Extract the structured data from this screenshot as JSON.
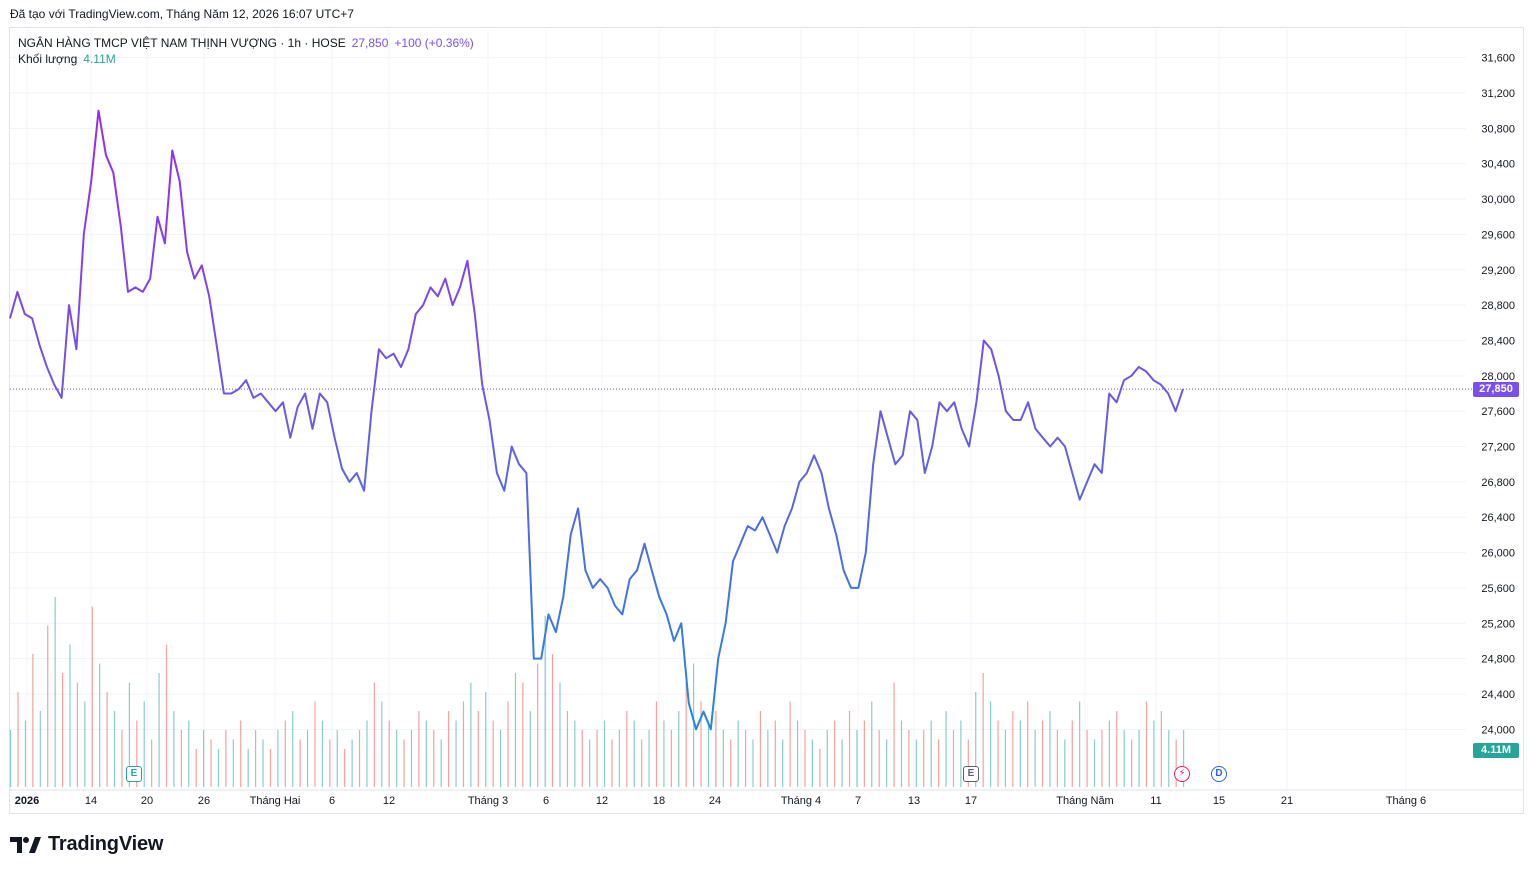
{
  "caption": "Đã tạo với TradingView.com, Tháng Năm 12, 2026 16:07 UTC+7",
  "legend": {
    "symbol": "NGÂN HÀNG TMCP VIỆT NAM THỊNH VƯỢNG · 1h · HOSE",
    "last": "27,850",
    "change": "+100 (+0.36%)",
    "volume_label": "Khối lượng",
    "volume_value": "4.11M"
  },
  "price_tag": "27,850",
  "volume_tag": "4.11M",
  "markers": {
    "earnings": "E",
    "dividend": "D",
    "flash": "⚡"
  },
  "brand": "TradingView",
  "colors": {
    "line_start": "#9c27f0",
    "line_mid": "#6a5ae8",
    "line_low": "#1e88e5",
    "vol_up": "#26a69a",
    "vol_down": "#ef5350",
    "tag": "#7a4ff0"
  },
  "chart_data": {
    "type": "line",
    "ylim": [
      23800,
      31800
    ],
    "y_ticks": [
      "31,600",
      "31,200",
      "30,800",
      "30,400",
      "30,000",
      "29,600",
      "29,200",
      "28,800",
      "28,400",
      "28,000",
      "27,600",
      "27,200",
      "26,800",
      "26,400",
      "26,000",
      "25,600",
      "25,200",
      "24,800",
      "24,400",
      "24,000"
    ],
    "x_ticks": [
      "2026",
      "14",
      "20",
      "26",
      "Tháng Hai",
      "6",
      "12",
      "Tháng 3",
      "6",
      "12",
      "18",
      "24",
      "Tháng 4",
      "7",
      "13",
      "17",
      "Tháng Năm",
      "11",
      "15",
      "21",
      "Tháng 6"
    ],
    "series": [
      {
        "values": [
          28650,
          28950,
          28700,
          28650,
          28350,
          28100,
          27900,
          27750,
          28800,
          28300,
          29600,
          30200,
          31000,
          30500,
          30300,
          29700,
          28950,
          29000,
          28950,
          29100,
          29800,
          29500,
          30550,
          30200,
          29400,
          29100,
          29250,
          28900,
          28350,
          27800,
          27800,
          27850,
          27950,
          27750,
          27800,
          27700,
          27600,
          27700,
          27300,
          27650,
          27800,
          27400,
          27800,
          27700,
          27300,
          26950,
          26800,
          26900,
          26700,
          27600,
          28300,
          28200,
          28250,
          28100,
          28300,
          28700,
          28800,
          29000,
          28900,
          29100,
          28800,
          29000,
          29300,
          28700,
          27900,
          27500,
          26900,
          26700,
          27200,
          27000,
          26900,
          24800,
          24800,
          25300,
          25100,
          25500,
          26200,
          26500,
          25800,
          25600,
          25700,
          25600,
          25400,
          25300,
          25700,
          25800,
          26100,
          25800,
          25500,
          25300,
          25000,
          25200,
          24300,
          24000,
          24200,
          24000,
          24800,
          25200,
          25900,
          26100,
          26300,
          26250,
          26400,
          26200,
          26000,
          26300,
          26500,
          26800,
          26900,
          27100,
          26900,
          26500,
          26200,
          25800,
          25600,
          25600,
          26000,
          27000,
          27600,
          27300,
          27000,
          27100,
          27600,
          27500,
          26900,
          27200,
          27700,
          27600,
          27700,
          27400,
          27200,
          27700,
          28400,
          28300,
          28000,
          27600,
          27500,
          27500,
          27700,
          27400,
          27300,
          27200,
          27300,
          27200,
          26900,
          26600,
          26800,
          27000,
          26900,
          27800,
          27700,
          27950,
          28000,
          28100,
          28050,
          27950,
          27900,
          27800,
          27600,
          27850
        ]
      }
    ],
    "volume": [
      {
        "v": 0.3,
        "up": true
      },
      {
        "v": 0.5,
        "up": false
      },
      {
        "v": 0.35,
        "up": true
      },
      {
        "v": 0.7,
        "up": false
      },
      {
        "v": 0.4,
        "up": true
      },
      {
        "v": 0.85,
        "up": false
      },
      {
        "v": 1.0,
        "up": true
      },
      {
        "v": 0.6,
        "up": false
      },
      {
        "v": 0.75,
        "up": true
      },
      {
        "v": 0.55,
        "up": false
      },
      {
        "v": 0.45,
        "up": true
      },
      {
        "v": 0.95,
        "up": false
      },
      {
        "v": 0.65,
        "up": true
      },
      {
        "v": 0.5,
        "up": false
      },
      {
        "v": 0.4,
        "up": true
      },
      {
        "v": 0.3,
        "up": false
      },
      {
        "v": 0.55,
        "up": true
      },
      {
        "v": 0.35,
        "up": false
      },
      {
        "v": 0.45,
        "up": true
      },
      {
        "v": 0.25,
        "up": false
      },
      {
        "v": 0.6,
        "up": true
      },
      {
        "v": 0.75,
        "up": false
      },
      {
        "v": 0.4,
        "up": true
      },
      {
        "v": 0.3,
        "up": false
      },
      {
        "v": 0.35,
        "up": true
      },
      {
        "v": 0.2,
        "up": false
      },
      {
        "v": 0.3,
        "up": true
      },
      {
        "v": 0.25,
        "up": false
      },
      {
        "v": 0.2,
        "up": true
      },
      {
        "v": 0.3,
        "up": false
      },
      {
        "v": 0.25,
        "up": true
      },
      {
        "v": 0.35,
        "up": false
      },
      {
        "v": 0.2,
        "up": true
      },
      {
        "v": 0.3,
        "up": false
      },
      {
        "v": 0.25,
        "up": true
      },
      {
        "v": 0.2,
        "up": false
      },
      {
        "v": 0.3,
        "up": true
      },
      {
        "v": 0.35,
        "up": false
      },
      {
        "v": 0.4,
        "up": true
      },
      {
        "v": 0.25,
        "up": false
      },
      {
        "v": 0.3,
        "up": true
      },
      {
        "v": 0.45,
        "up": false
      },
      {
        "v": 0.35,
        "up": true
      },
      {
        "v": 0.25,
        "up": false
      },
      {
        "v": 0.3,
        "up": true
      },
      {
        "v": 0.2,
        "up": false
      },
      {
        "v": 0.25,
        "up": true
      },
      {
        "v": 0.3,
        "up": false
      },
      {
        "v": 0.35,
        "up": true
      },
      {
        "v": 0.55,
        "up": false
      },
      {
        "v": 0.45,
        "up": true
      },
      {
        "v": 0.35,
        "up": false
      },
      {
        "v": 0.3,
        "up": true
      },
      {
        "v": 0.25,
        "up": false
      },
      {
        "v": 0.3,
        "up": true
      },
      {
        "v": 0.4,
        "up": false
      },
      {
        "v": 0.35,
        "up": true
      },
      {
        "v": 0.3,
        "up": false
      },
      {
        "v": 0.25,
        "up": true
      },
      {
        "v": 0.4,
        "up": false
      },
      {
        "v": 0.35,
        "up": true
      },
      {
        "v": 0.45,
        "up": false
      },
      {
        "v": 0.55,
        "up": true
      },
      {
        "v": 0.4,
        "up": false
      },
      {
        "v": 0.5,
        "up": true
      },
      {
        "v": 0.35,
        "up": false
      },
      {
        "v": 0.3,
        "up": true
      },
      {
        "v": 0.45,
        "up": false
      },
      {
        "v": 0.6,
        "up": true
      },
      {
        "v": 0.55,
        "up": false
      },
      {
        "v": 0.4,
        "up": true
      },
      {
        "v": 0.65,
        "up": false
      },
      {
        "v": 0.9,
        "up": true
      },
      {
        "v": 0.7,
        "up": false
      },
      {
        "v": 0.55,
        "up": true
      },
      {
        "v": 0.4,
        "up": false
      },
      {
        "v": 0.35,
        "up": true
      },
      {
        "v": 0.3,
        "up": false
      },
      {
        "v": 0.25,
        "up": true
      },
      {
        "v": 0.3,
        "up": false
      },
      {
        "v": 0.35,
        "up": true
      },
      {
        "v": 0.25,
        "up": false
      },
      {
        "v": 0.3,
        "up": true
      },
      {
        "v": 0.4,
        "up": false
      },
      {
        "v": 0.35,
        "up": true
      },
      {
        "v": 0.25,
        "up": false
      },
      {
        "v": 0.3,
        "up": true
      },
      {
        "v": 0.45,
        "up": false
      },
      {
        "v": 0.35,
        "up": true
      },
      {
        "v": 0.3,
        "up": false
      },
      {
        "v": 0.4,
        "up": true
      },
      {
        "v": 0.55,
        "up": false
      },
      {
        "v": 0.65,
        "up": true
      },
      {
        "v": 0.45,
        "up": false
      },
      {
        "v": 0.35,
        "up": true
      },
      {
        "v": 0.4,
        "up": false
      },
      {
        "v": 0.3,
        "up": true
      },
      {
        "v": 0.25,
        "up": false
      },
      {
        "v": 0.35,
        "up": true
      },
      {
        "v": 0.3,
        "up": false
      },
      {
        "v": 0.25,
        "up": true
      },
      {
        "v": 0.4,
        "up": false
      },
      {
        "v": 0.3,
        "up": true
      },
      {
        "v": 0.35,
        "up": false
      },
      {
        "v": 0.25,
        "up": true
      },
      {
        "v": 0.45,
        "up": false
      },
      {
        "v": 0.35,
        "up": true
      },
      {
        "v": 0.3,
        "up": false
      },
      {
        "v": 0.25,
        "up": true
      },
      {
        "v": 0.2,
        "up": false
      },
      {
        "v": 0.3,
        "up": true
      },
      {
        "v": 0.35,
        "up": false
      },
      {
        "v": 0.25,
        "up": true
      },
      {
        "v": 0.4,
        "up": false
      },
      {
        "v": 0.3,
        "up": true
      },
      {
        "v": 0.35,
        "up": false
      },
      {
        "v": 0.45,
        "up": true
      },
      {
        "v": 0.3,
        "up": false
      },
      {
        "v": 0.25,
        "up": true
      },
      {
        "v": 0.55,
        "up": false
      },
      {
        "v": 0.35,
        "up": true
      },
      {
        "v": 0.3,
        "up": false
      },
      {
        "v": 0.25,
        "up": true
      },
      {
        "v": 0.3,
        "up": false
      },
      {
        "v": 0.35,
        "up": true
      },
      {
        "v": 0.25,
        "up": false
      },
      {
        "v": 0.4,
        "up": true
      },
      {
        "v": 0.3,
        "up": false
      },
      {
        "v": 0.35,
        "up": true
      },
      {
        "v": 0.25,
        "up": false
      },
      {
        "v": 0.5,
        "up": true
      },
      {
        "v": 0.6,
        "up": false
      },
      {
        "v": 0.45,
        "up": true
      },
      {
        "v": 0.35,
        "up": false
      },
      {
        "v": 0.3,
        "up": true
      },
      {
        "v": 0.4,
        "up": false
      },
      {
        "v": 0.35,
        "up": true
      },
      {
        "v": 0.45,
        "up": false
      },
      {
        "v": 0.3,
        "up": true
      },
      {
        "v": 0.35,
        "up": false
      },
      {
        "v": 0.4,
        "up": true
      },
      {
        "v": 0.3,
        "up": false
      },
      {
        "v": 0.25,
        "up": true
      },
      {
        "v": 0.35,
        "up": false
      },
      {
        "v": 0.45,
        "up": true
      },
      {
        "v": 0.3,
        "up": false
      },
      {
        "v": 0.25,
        "up": true
      },
      {
        "v": 0.3,
        "up": false
      },
      {
        "v": 0.35,
        "up": true
      },
      {
        "v": 0.4,
        "up": false
      },
      {
        "v": 0.3,
        "up": true
      },
      {
        "v": 0.25,
        "up": false
      },
      {
        "v": 0.3,
        "up": true
      },
      {
        "v": 0.45,
        "up": false
      },
      {
        "v": 0.35,
        "up": true
      },
      {
        "v": 0.4,
        "up": false
      },
      {
        "v": 0.3,
        "up": true
      },
      {
        "v": 0.25,
        "up": false
      },
      {
        "v": 0.3,
        "up": true
      }
    ]
  }
}
